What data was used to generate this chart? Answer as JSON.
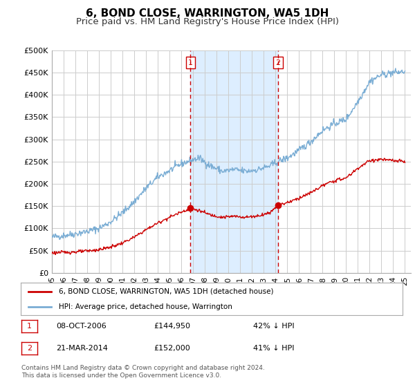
{
  "title": "6, BOND CLOSE, WARRINGTON, WA5 1DH",
  "subtitle": "Price paid vs. HM Land Registry's House Price Index (HPI)",
  "title_fontsize": 11,
  "subtitle_fontsize": 9.5,
  "ylim": [
    0,
    500000
  ],
  "yticks": [
    0,
    50000,
    100000,
    150000,
    200000,
    250000,
    300000,
    350000,
    400000,
    450000,
    500000
  ],
  "ytick_labels": [
    "£0",
    "£50K",
    "£100K",
    "£150K",
    "£200K",
    "£250K",
    "£300K",
    "£350K",
    "£400K",
    "£450K",
    "£500K"
  ],
  "xmin_year": 1995.0,
  "xmax_year": 2025.5,
  "xtick_years": [
    1995,
    1996,
    1997,
    1998,
    1999,
    2000,
    2001,
    2002,
    2003,
    2004,
    2005,
    2006,
    2007,
    2008,
    2009,
    2010,
    2011,
    2012,
    2013,
    2014,
    2015,
    2016,
    2017,
    2018,
    2019,
    2020,
    2021,
    2022,
    2023,
    2024,
    2025
  ],
  "xtick_labels": [
    "95",
    "96",
    "97",
    "98",
    "99",
    "00",
    "01",
    "02",
    "03",
    "04",
    "05",
    "06",
    "07",
    "08",
    "09",
    "10",
    "11",
    "12",
    "13",
    "14",
    "15",
    "16",
    "17",
    "18",
    "19",
    "20",
    "21",
    "22",
    "23",
    "24",
    "25"
  ],
  "marker1_x": 2006.78,
  "marker1_y": 144950,
  "marker2_x": 2014.22,
  "marker2_y": 152000,
  "marker_color": "#cc0000",
  "vline_color": "#cc0000",
  "shade_color": "#ddeeff",
  "hpi_line_color": "#7aadd4",
  "price_line_color": "#cc0000",
  "legend_entries": [
    "6, BOND CLOSE, WARRINGTON, WA5 1DH (detached house)",
    "HPI: Average price, detached house, Warrington"
  ],
  "table_rows": [
    {
      "num": "1",
      "date": "08-OCT-2006",
      "price": "£144,950",
      "pct": "42% ↓ HPI"
    },
    {
      "num": "2",
      "date": "21-MAR-2014",
      "price": "£152,000",
      "pct": "41% ↓ HPI"
    }
  ],
  "footnote": "Contains HM Land Registry data © Crown copyright and database right 2024.\nThis data is licensed under the Open Government Licence v3.0.",
  "bg_color": "#ffffff",
  "plot_bg_color": "#ffffff",
  "grid_color": "#cccccc"
}
